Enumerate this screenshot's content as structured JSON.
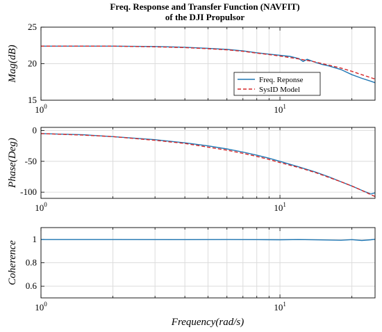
{
  "chart_data": {
    "type": "line",
    "title_line1": "Freq. Response and Transfer Function (NAVFIT)",
    "title_line2": "of the DJI Propulsor",
    "xlabel": "Frequency(rad/s)",
    "xscale": "log",
    "xlim": [
      1,
      25
    ],
    "legend": {
      "placement": "lower-right of magnitude panel",
      "entries": [
        "Freq. Reponse",
        "SysID Model"
      ]
    },
    "colors": {
      "measured": "#1f77b4",
      "model": "#d62728",
      "grid": "#dcdcdc"
    },
    "panels": [
      {
        "id": "magnitude",
        "ylabel": "Mag(dB)",
        "ylim": [
          15,
          25
        ],
        "yticks": [
          15,
          20,
          25
        ],
        "series": [
          {
            "name": "Freq. Reponse",
            "style": "solid",
            "x": [
              1,
              2,
              3,
              4,
              5,
              6,
              7,
              8,
              9,
              10,
              11,
              12,
              12.5,
              13,
              14,
              15,
              16,
              18,
              20,
              22,
              24,
              25
            ],
            "y": [
              22.4,
              22.4,
              22.35,
              22.25,
              22.1,
              21.95,
              21.75,
              21.5,
              21.3,
              21.15,
              21.0,
              20.7,
              20.3,
              20.6,
              20.2,
              19.9,
              19.7,
              19.2,
              18.5,
              18.0,
              17.6,
              17.4
            ]
          },
          {
            "name": "SysID Model",
            "style": "dashed",
            "x": [
              1,
              2,
              3,
              4,
              5,
              6,
              7,
              8,
              9,
              10,
              12,
              14,
              16,
              18,
              20,
              22,
              25
            ],
            "y": [
              22.4,
              22.4,
              22.3,
              22.2,
              22.05,
              21.9,
              21.7,
              21.45,
              21.25,
              21.05,
              20.65,
              20.25,
              19.8,
              19.4,
              18.95,
              18.5,
              17.9
            ]
          }
        ]
      },
      {
        "id": "phase",
        "ylabel": "Phase(Deg)",
        "ylim": [
          -110,
          5
        ],
        "yticks": [
          -100,
          -50,
          0
        ],
        "series": [
          {
            "name": "Freq. Reponse",
            "style": "solid",
            "x": [
              1,
              1.5,
              2,
              3,
              4,
              5,
              6,
              7,
              8,
              9,
              10,
              12,
              14,
              16,
              18,
              20,
              22,
              24,
              25
            ],
            "y": [
              -5,
              -7,
              -10,
              -15,
              -20,
              -25,
              -30,
              -35,
              -40,
              -45,
              -50,
              -59,
              -67,
              -75,
              -83,
              -90,
              -97,
              -103,
              -101
            ]
          },
          {
            "name": "SysID Model",
            "style": "dashed",
            "x": [
              1,
              1.5,
              2,
              3,
              4,
              5,
              6,
              7,
              8,
              9,
              10,
              12,
              14,
              16,
              18,
              20,
              22,
              24,
              25
            ],
            "y": [
              -5,
              -7.5,
              -10,
              -16,
              -21,
              -27,
              -32,
              -37,
              -42,
              -47,
              -52,
              -60,
              -68,
              -76,
              -83,
              -90,
              -97,
              -104,
              -107
            ]
          }
        ]
      },
      {
        "id": "coherence",
        "ylabel": "Coherence",
        "ylim": [
          0.5,
          1.1
        ],
        "yticks": [
          0.6,
          0.8,
          1
        ],
        "series": [
          {
            "name": "Freq. Reponse",
            "style": "solid",
            "x": [
              1,
              2,
              4,
              6,
              8,
              10,
              12,
              15,
              18,
              20,
              22,
              24,
              25
            ],
            "y": [
              0.998,
              0.998,
              0.997,
              0.998,
              0.997,
              0.996,
              0.998,
              0.995,
              0.992,
              0.997,
              0.99,
              0.996,
              1.0
            ]
          }
        ]
      }
    ]
  }
}
